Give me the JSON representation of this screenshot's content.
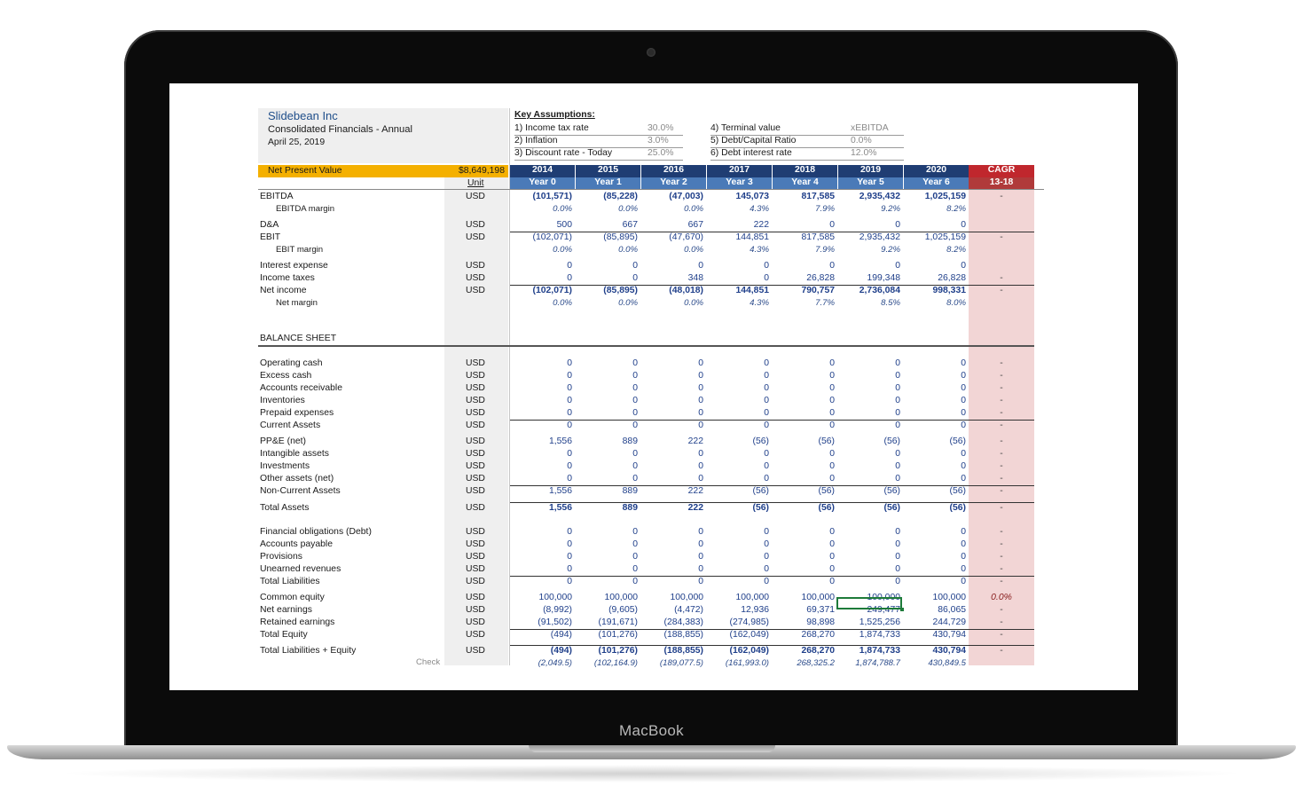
{
  "device_label": "MacBook",
  "header": {
    "company": "Slidebean Inc",
    "report": "Consolidated Financials - Annual",
    "date": "April 25, 2019"
  },
  "key_assumptions": {
    "title": "Key Assumptions:",
    "items": [
      {
        "label": "1) Income tax rate",
        "value": "30.0%"
      },
      {
        "label": "2) Inflation",
        "value": "3.0%"
      },
      {
        "label": "3) Discount rate - Today",
        "value": "25.0%"
      },
      {
        "label": "4) Terminal value",
        "value": "xEBITDA"
      },
      {
        "label": "5) Debt/Capital Ratio",
        "value": "0.0%"
      },
      {
        "label": "6) Debt interest rate",
        "value": "12.0%"
      }
    ]
  },
  "npv": {
    "label": "Net Present Value",
    "value": "$8,649,198"
  },
  "unit_header": "Unit",
  "columns": [
    {
      "year": "2014",
      "label": "Year 0"
    },
    {
      "year": "2015",
      "label": "Year 1"
    },
    {
      "year": "2016",
      "label": "Year 2"
    },
    {
      "year": "2017",
      "label": "Year 3"
    },
    {
      "year": "2018",
      "label": "Year 4"
    },
    {
      "year": "2019",
      "label": "Year 5"
    },
    {
      "year": "2020",
      "label": "Year 6"
    }
  ],
  "cagr": {
    "title": "CAGR",
    "range": "13-18"
  },
  "balance_sheet_title": "BALANCE SHEET",
  "check_label": "Check",
  "rows": [
    {
      "label": "EBITDA",
      "unit": "USD",
      "values": [
        "(101,571)",
        "(85,228)",
        "(47,003)",
        "145,073",
        "817,585",
        "2,935,432",
        "1,025,159"
      ],
      "cagr": "-",
      "bold": true
    },
    {
      "label": "EBITDA margin",
      "sub": true,
      "pct": true,
      "values": [
        "0.0%",
        "0.0%",
        "0.0%",
        "4.3%",
        "7.9%",
        "9.2%",
        "8.2%"
      ]
    },
    {
      "label": "D&A",
      "unit": "USD",
      "values": [
        "500",
        "667",
        "667",
        "222",
        "0",
        "0",
        "0"
      ]
    },
    {
      "label": "EBIT",
      "unit": "USD",
      "values": [
        "(102,071)",
        "(85,895)",
        "(47,670)",
        "144,851",
        "817,585",
        "2,935,432",
        "1,025,159"
      ],
      "cagr": "-",
      "line": true
    },
    {
      "label": "EBIT margin",
      "sub": true,
      "pct": true,
      "values": [
        "0.0%",
        "0.0%",
        "0.0%",
        "4.3%",
        "7.9%",
        "9.2%",
        "8.2%"
      ]
    },
    {
      "label": "Interest expense",
      "unit": "USD",
      "values": [
        "0",
        "0",
        "0",
        "0",
        "0",
        "0",
        "0"
      ]
    },
    {
      "label": "Income taxes",
      "unit": "USD",
      "values": [
        "0",
        "0",
        "348",
        "0",
        "26,828",
        "199,348",
        "26,828"
      ],
      "cagr": "-"
    },
    {
      "label": "Net income",
      "unit": "USD",
      "values": [
        "(102,071)",
        "(85,895)",
        "(48,018)",
        "144,851",
        "790,757",
        "2,736,084",
        "998,331"
      ],
      "cagr": "-",
      "bold": true,
      "line": true
    },
    {
      "label": "Net margin",
      "sub": true,
      "pct": true,
      "values": [
        "0.0%",
        "0.0%",
        "0.0%",
        "4.3%",
        "7.7%",
        "8.5%",
        "8.0%"
      ]
    },
    {
      "label": "Operating cash",
      "unit": "USD",
      "values": [
        "0",
        "0",
        "0",
        "0",
        "0",
        "0",
        "0"
      ],
      "cagr": "-"
    },
    {
      "label": "Excess cash",
      "unit": "USD",
      "values": [
        "0",
        "0",
        "0",
        "0",
        "0",
        "0",
        "0"
      ],
      "cagr": "-"
    },
    {
      "label": "Accounts receivable",
      "unit": "USD",
      "values": [
        "0",
        "0",
        "0",
        "0",
        "0",
        "0",
        "0"
      ],
      "cagr": "-"
    },
    {
      "label": "Inventories",
      "unit": "USD",
      "values": [
        "0",
        "0",
        "0",
        "0",
        "0",
        "0",
        "0"
      ],
      "cagr": "-"
    },
    {
      "label": "Prepaid expenses",
      "unit": "USD",
      "values": [
        "0",
        "0",
        "0",
        "0",
        "0",
        "0",
        "0"
      ],
      "cagr": "-"
    },
    {
      "label": "Current Assets",
      "unit": "USD",
      "values": [
        "0",
        "0",
        "0",
        "0",
        "0",
        "0",
        "0"
      ],
      "cagr": "-",
      "line": true
    },
    {
      "label": "PP&E (net)",
      "unit": "USD",
      "values": [
        "1,556",
        "889",
        "222",
        "(56)",
        "(56)",
        "(56)",
        "(56)"
      ],
      "cagr": "-"
    },
    {
      "label": "Intangible assets",
      "unit": "USD",
      "values": [
        "0",
        "0",
        "0",
        "0",
        "0",
        "0",
        "0"
      ],
      "cagr": "-"
    },
    {
      "label": "Investments",
      "unit": "USD",
      "values": [
        "0",
        "0",
        "0",
        "0",
        "0",
        "0",
        "0"
      ],
      "cagr": "-"
    },
    {
      "label": "Other assets (net)",
      "unit": "USD",
      "values": [
        "0",
        "0",
        "0",
        "0",
        "0",
        "0",
        "0"
      ],
      "cagr": "-"
    },
    {
      "label": "Non-Current Assets",
      "unit": "USD",
      "values": [
        "1,556",
        "889",
        "222",
        "(56)",
        "(56)",
        "(56)",
        "(56)"
      ],
      "cagr": "-",
      "line": true
    },
    {
      "label": "Total Assets",
      "unit": "USD",
      "values": [
        "1,556",
        "889",
        "222",
        "(56)",
        "(56)",
        "(56)",
        "(56)"
      ],
      "cagr": "-",
      "bold": true,
      "line": true
    },
    {
      "label": "Financial obligations (Debt)",
      "unit": "USD",
      "values": [
        "0",
        "0",
        "0",
        "0",
        "0",
        "0",
        "0"
      ],
      "cagr": "-"
    },
    {
      "label": "Accounts payable",
      "unit": "USD",
      "values": [
        "0",
        "0",
        "0",
        "0",
        "0",
        "0",
        "0"
      ],
      "cagr": "-"
    },
    {
      "label": "Provisions",
      "unit": "USD",
      "values": [
        "0",
        "0",
        "0",
        "0",
        "0",
        "0",
        "0"
      ],
      "cagr": "-"
    },
    {
      "label": "Unearned revenues",
      "unit": "USD",
      "values": [
        "0",
        "0",
        "0",
        "0",
        "0",
        "0",
        "0"
      ],
      "cagr": "-"
    },
    {
      "label": "Total Liabilities",
      "unit": "USD",
      "values": [
        "0",
        "0",
        "0",
        "0",
        "0",
        "0",
        "0"
      ],
      "cagr": "-",
      "line": true
    },
    {
      "label": "Common equity",
      "unit": "USD",
      "values": [
        "100,000",
        "100,000",
        "100,000",
        "100,000",
        "100,000",
        "100,000",
        "100,000"
      ],
      "cagr": "0.0%"
    },
    {
      "label": "Net earnings",
      "unit": "USD",
      "values": [
        "(8,992)",
        "(9,605)",
        "(4,472)",
        "12,936",
        "69,371",
        "249,477",
        "86,065"
      ],
      "cagr": "-"
    },
    {
      "label": "Retained earnings",
      "unit": "USD",
      "values": [
        "(91,502)",
        "(191,671)",
        "(284,383)",
        "(274,985)",
        "98,898",
        "1,525,256",
        "244,729"
      ],
      "cagr": "-"
    },
    {
      "label": "Total Equity",
      "unit": "USD",
      "values": [
        "(494)",
        "(101,276)",
        "(188,855)",
        "(162,049)",
        "268,270",
        "1,874,733",
        "430,794"
      ],
      "cagr": "-",
      "line": true
    },
    {
      "label": "Total Liabilities + Equity",
      "unit": "USD",
      "values": [
        "(494)",
        "(101,276)",
        "(188,855)",
        "(162,049)",
        "268,270",
        "1,874,733",
        "430,794"
      ],
      "cagr": "-",
      "bold": true,
      "line": true
    },
    {
      "label": "",
      "pct": true,
      "values": [
        "(2,049.5)",
        "(102,164.9)",
        "(189,077.5)",
        "(161,993.0)",
        "268,325.2",
        "1,874,788.7",
        "430,849.5"
      ]
    }
  ]
}
